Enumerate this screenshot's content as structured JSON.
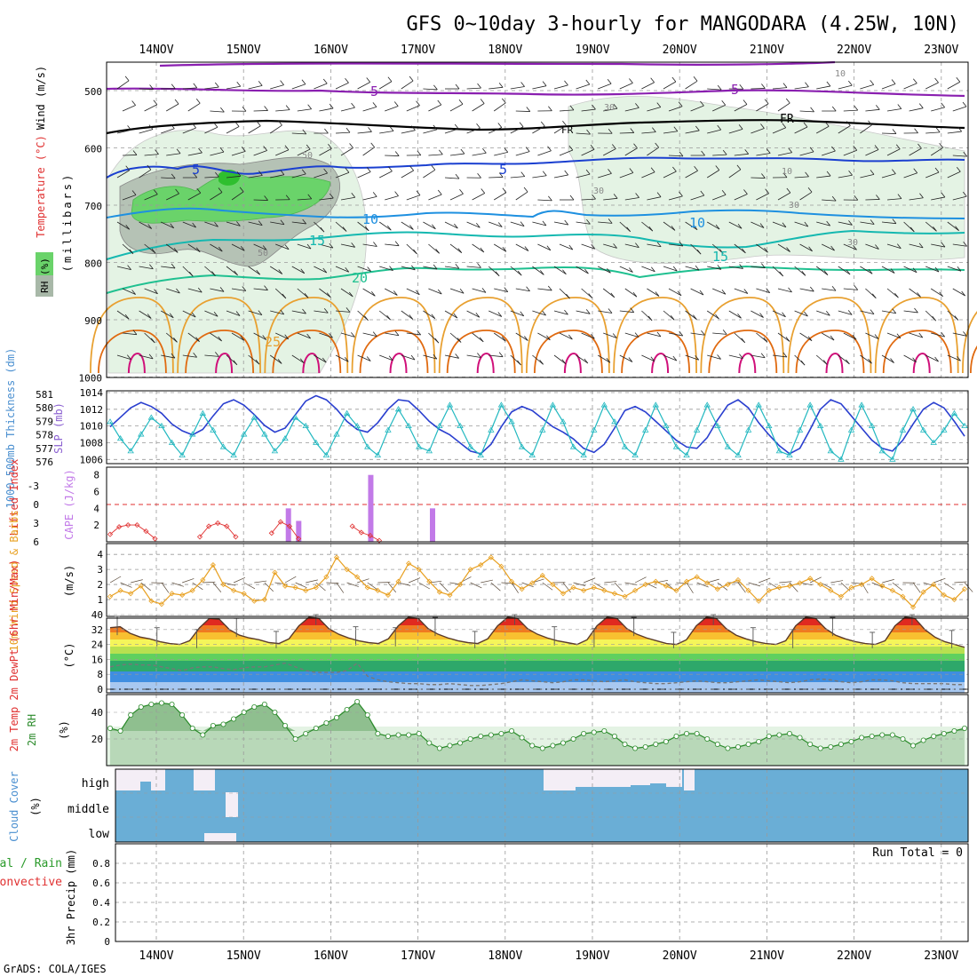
{
  "title": "GFS 0~10day 3-hourly for MANGODARA (4.25W, 10N)",
  "footer": "GrADS: COLA/IGES",
  "dates": [
    "14NOV",
    "15NOV",
    "16NOV",
    "17NOV",
    "18NOV",
    "19NOV",
    "20NOV",
    "21NOV",
    "22NOV",
    "23NOV"
  ],
  "colors": {
    "grid": "#aaaaaa",
    "minus5": "#8a1fb0",
    "freeze": "#000000",
    "t5": "#1a3fd0",
    "t10": "#1e90e0",
    "t15": "#15b8b0",
    "t20": "#1fc090",
    "t25": "#e8a030",
    "t30": "#e06a10",
    "t35": "#d0107a",
    "rh_light": "#e4f3e4",
    "rh_mid": "#a8b8a8",
    "rh_high": "#6ad36a",
    "thickness": "#2a3fcf",
    "slp": "#22b8c0",
    "lifted": "#e03030",
    "cape": "#c27ae8",
    "wind10m": "#e8a020",
    "dewpt": "#777777",
    "rh2m": "#2a8a2a",
    "cloud": "#6aaed6",
    "precip_total": "#2a9a2a",
    "precip_conv": "#e03030"
  },
  "panels": {
    "upper_air": {
      "ylabel": "(millibars)",
      "yticks": [
        "500",
        "600",
        "700",
        "800",
        "900",
        "1000"
      ],
      "legend_wind": "Wind (m/s)",
      "legend_temp": "Temperature (°C)",
      "legend_rh": "RH (%)",
      "labels": {
        "minus5": "-5",
        "freeze": "FR",
        "t5": "5",
        "t10": "10",
        "t15": "15",
        "t20": "20",
        "t25": "25",
        "rh10": "10",
        "rh30": "30",
        "rh50": "50"
      }
    },
    "thickness_slp": {
      "ylabel_left": "1000-500mb Thickness (dm)",
      "ylabel_right": "SLP (mb)",
      "left_ticks": [
        "576",
        "577",
        "578",
        "579",
        "580",
        "581"
      ],
      "right_ticks": [
        "1006",
        "1008",
        "1010",
        "1012",
        "1014"
      ]
    },
    "stability": {
      "ylabel_left": "Lifted Index",
      "ylabel_right": "CAPE (J/kg)",
      "li_ticks": [
        "-3",
        "0",
        "3",
        "6"
      ],
      "cape_ticks": [
        "2",
        "4",
        "6",
        "8"
      ]
    },
    "wind10m": {
      "ylabel": "10m Wind Speed & Barbs",
      "units": "(m/s)",
      "yticks": [
        "1",
        "2",
        "3",
        "4"
      ]
    },
    "temp2m": {
      "ylabel": "2m Temp 2m DewPt (6hr Min/Max)",
      "units": "(°C)",
      "yticks": [
        "0",
        "8",
        "16",
        "24",
        "32",
        "40"
      ]
    },
    "rh2m": {
      "ylabel": "2m RH",
      "units": "(%)",
      "yticks": [
        "20",
        "40"
      ]
    },
    "cloud": {
      "ylabel": "Cloud Cover",
      "units": "(%)",
      "levels": [
        "high",
        "middle",
        "low"
      ]
    },
    "precip": {
      "ylabel_left": "Total / Rain",
      "ylabel_left2": "Convective",
      "ylabel": "3hr Precip (mm)",
      "yticks": [
        "0",
        "0.2",
        "0.4",
        "0.6",
        "0.8"
      ],
      "run_total": "Run Total = 0"
    }
  },
  "chart_data": [
    {
      "type": "line",
      "title": "1000-500mb Thickness (dm) / SLP (mb)",
      "series": [
        {
          "name": "1000-500mb Thickness (dm)",
          "values": [
            578.6,
            579.3,
            580.0,
            580.4,
            580.1,
            579.6,
            578.8,
            578.3,
            578.0,
            578.4,
            579.4,
            580.3,
            580.6,
            580.2,
            579.5,
            578.7,
            578.2,
            578.5,
            579.5,
            580.5,
            580.9,
            580.6,
            579.9,
            579.0,
            578.4,
            578.2,
            578.9,
            579.9,
            580.6,
            580.5,
            579.8,
            579.0,
            578.4,
            578.0,
            577.4,
            576.8,
            576.6,
            577.3,
            578.6,
            579.7,
            580.1,
            579.8,
            579.2,
            578.6,
            578.2,
            577.7,
            577.0,
            576.7,
            577.3,
            578.5,
            579.8,
            580.1,
            579.7,
            579.0,
            578.3,
            577.6,
            577.1,
            577.0,
            577.8,
            579.1,
            580.2,
            580.6,
            580.0,
            578.9,
            578.0,
            577.2,
            576.6,
            577.0,
            578.4,
            579.9,
            580.6,
            580.3,
            579.4,
            578.5,
            577.6,
            577.0,
            576.8,
            577.6,
            578.8,
            579.9,
            580.4,
            580.0,
            579.0,
            577.9
          ]
        },
        {
          "name": "SLP (mb)",
          "values": [
            1010.5,
            1008.5,
            1007.0,
            1009.0,
            1011.0,
            1010.0,
            1008.0,
            1006.5,
            1009.0,
            1011.5,
            1009.5,
            1007.5,
            1006.5,
            1009.0,
            1011.0,
            1009.0,
            1007.0,
            1008.5,
            1011.0,
            1010.0,
            1008.0,
            1006.5,
            1009.0,
            1011.5,
            1010.0,
            1007.5,
            1006.5,
            1009.5,
            1012.0,
            1010.0,
            1007.5,
            1007.0,
            1010.0,
            1012.5,
            1010.0,
            1007.5,
            1006.5,
            1009.5,
            1012.5,
            1010.5,
            1007.5,
            1006.5,
            1009.5,
            1012.5,
            1010.5,
            1007.5,
            1006.5,
            1009.5,
            1012.5,
            1010.5,
            1007.5,
            1006.5,
            1009.5,
            1012.5,
            1010.0,
            1007.5,
            1006.5,
            1009.5,
            1012.5,
            1010.0,
            1007.5,
            1006.5,
            1009.5,
            1012.5,
            1010.0,
            1007.0,
            1006.5,
            1009.5,
            1012.5,
            1010.0,
            1007.0,
            1006.0,
            1009.5,
            1012.5,
            1010.0,
            1007.0,
            1006.0,
            1009.5,
            1012.0,
            1009.5,
            1008.0,
            1009.5,
            1011.5,
            1010.0
          ]
        }
      ],
      "ylim_left": [
        576,
        581
      ],
      "ylim_right": [
        1005.5,
        1014
      ]
    },
    {
      "type": "bar",
      "title": "CAPE (J/kg) / Lifted Index",
      "series": [
        {
          "name": "CAPE (J/kg)",
          "x_index": [
            8,
            9,
            16,
            22
          ],
          "values": [
            4,
            2.5,
            8,
            4
          ]
        },
        {
          "name": "Lifted Index",
          "values": [
            4.8,
            3.6,
            3.3,
            3.3,
            4.3,
            5.5,
            null,
            null,
            null,
            null,
            5.2,
            3.5,
            3.0,
            3.5,
            5.2,
            null,
            null,
            null,
            4.6,
            2.8,
            3.5,
            5.5,
            null,
            null,
            null,
            null,
            null,
            3.5,
            4.5,
            5.0,
            5.8,
            null
          ]
        }
      ],
      "ylim_li": [
        6,
        -4.5
      ],
      "ylim_cape": [
        0,
        8.5
      ]
    },
    {
      "type": "line",
      "title": "10m Wind Speed (m/s)",
      "series": [
        {
          "name": "10m Wind Speed",
          "values": [
            1.2,
            1.6,
            1.4,
            1.9,
            0.9,
            0.7,
            1.4,
            1.3,
            1.6,
            2.3,
            3.3,
            2.0,
            1.6,
            1.4,
            0.9,
            1.0,
            2.8,
            1.9,
            1.8,
            1.6,
            1.8,
            2.5,
            3.8,
            3.0,
            2.5,
            1.8,
            1.6,
            1.3,
            2.2,
            3.4,
            3.0,
            2.2,
            1.5,
            1.3,
            2.0,
            3.0,
            3.3,
            3.8,
            3.2,
            2.2,
            1.7,
            2.1,
            2.6,
            2.0,
            1.4,
            1.8,
            1.6,
            1.8,
            1.6,
            1.4,
            1.2,
            1.6,
            2.0,
            2.2,
            1.9,
            1.6,
            2.2,
            2.5,
            2.1,
            1.7,
            2.0,
            2.3,
            1.6,
            0.9,
            1.6,
            1.8,
            1.9,
            2.1,
            2.4,
            2.0,
            1.6,
            1.2,
            1.8,
            2.0,
            2.4,
            1.9,
            1.6,
            1.2,
            0.5,
            1.5,
            2.0,
            1.3,
            1.0,
            1.7
          ]
        }
      ],
      "ylim": [
        0,
        4.6
      ]
    },
    {
      "type": "area",
      "title": "2m Temp / 2m DewPt (°C)",
      "series": [
        {
          "name": "2m Temp",
          "values": [
            33,
            33.5,
            30,
            28,
            27,
            25.5,
            24.5,
            24,
            26,
            33,
            38,
            37.5,
            32,
            29,
            27.5,
            26.5,
            25,
            24.5,
            27,
            34,
            38.5,
            38,
            32.5,
            29.5,
            27.5,
            26,
            25,
            24.5,
            27,
            34,
            38.5,
            38,
            32.5,
            29.5,
            27.5,
            26,
            25,
            24.5,
            27,
            34,
            38.5,
            38,
            32.5,
            29.5,
            27.5,
            26,
            25,
            24,
            26.5,
            34,
            38.5,
            38,
            32.5,
            29.5,
            27.5,
            26,
            24.5,
            24,
            26.5,
            34,
            38.5,
            38,
            32.5,
            29,
            27,
            25.5,
            24.5,
            24,
            26,
            34,
            38.5,
            38,
            32.5,
            29,
            27,
            25.5,
            24.5,
            24,
            26,
            34,
            38.5,
            38,
            32,
            28,
            25.5,
            24,
            22.5
          ]
        },
        {
          "name": "2m DewPt",
          "values": [
            12,
            13,
            13.5,
            13,
            13,
            12,
            11,
            10,
            11.5,
            12,
            12,
            11,
            10.5,
            11.5,
            12,
            12,
            13,
            14,
            12,
            10,
            9,
            9,
            9,
            10,
            14,
            7,
            5,
            4,
            3.5,
            3,
            3,
            2.5,
            2.5,
            3,
            2.5,
            2,
            2,
            2.5,
            3,
            4,
            5,
            4.5,
            4,
            3.5,
            4,
            5,
            5,
            4.5,
            4,
            4.5,
            5,
            4,
            3.5,
            3,
            3,
            3.5,
            4,
            4.5,
            4,
            3.5,
            3.5,
            4,
            4.5,
            5,
            4.5,
            4,
            3.5,
            4,
            5,
            5.5,
            5,
            4,
            3.5,
            4,
            5,
            5,
            4.5,
            3.5,
            3,
            3,
            3,
            3,
            2.5,
            2.5
          ]
        }
      ],
      "ylim": [
        0,
        42
      ]
    },
    {
      "type": "area",
      "title": "2m RH (%)",
      "series": [
        {
          "name": "2m RH",
          "values": [
            28,
            26,
            38,
            44,
            46,
            47,
            46,
            38,
            28,
            23,
            30,
            31,
            35,
            40,
            44,
            46,
            40,
            30,
            20,
            24,
            28,
            32,
            36,
            42,
            48,
            38,
            24,
            22,
            23,
            23,
            24,
            17,
            13,
            15,
            17,
            20,
            22,
            23,
            24,
            26,
            21,
            15,
            13,
            15,
            17,
            20,
            24,
            25,
            26,
            22,
            16,
            13,
            14,
            16,
            18,
            22,
            24,
            24,
            20,
            16,
            13,
            14,
            16,
            18,
            22,
            23,
            24,
            21,
            16,
            13,
            14,
            16,
            18,
            21,
            22,
            23,
            23,
            20,
            15,
            19,
            22,
            24,
            26,
            28
          ]
        }
      ],
      "ylim": [
        0,
        52
      ]
    },
    {
      "type": "bar",
      "title": "Cloud Cover (%)",
      "categories": [
        "high",
        "middle",
        "low"
      ],
      "notes": "Sky mostly fully covered (blue); small clear gaps on 14NOV-15NOV and 18NOV-20NOV high layer."
    },
    {
      "type": "bar",
      "title": "3hr Precip (mm)",
      "series": [
        {
          "name": "3hr Precip",
          "values": [
            0
          ]
        }
      ],
      "ylim": [
        0,
        1.0
      ],
      "run_total": 0
    }
  ]
}
